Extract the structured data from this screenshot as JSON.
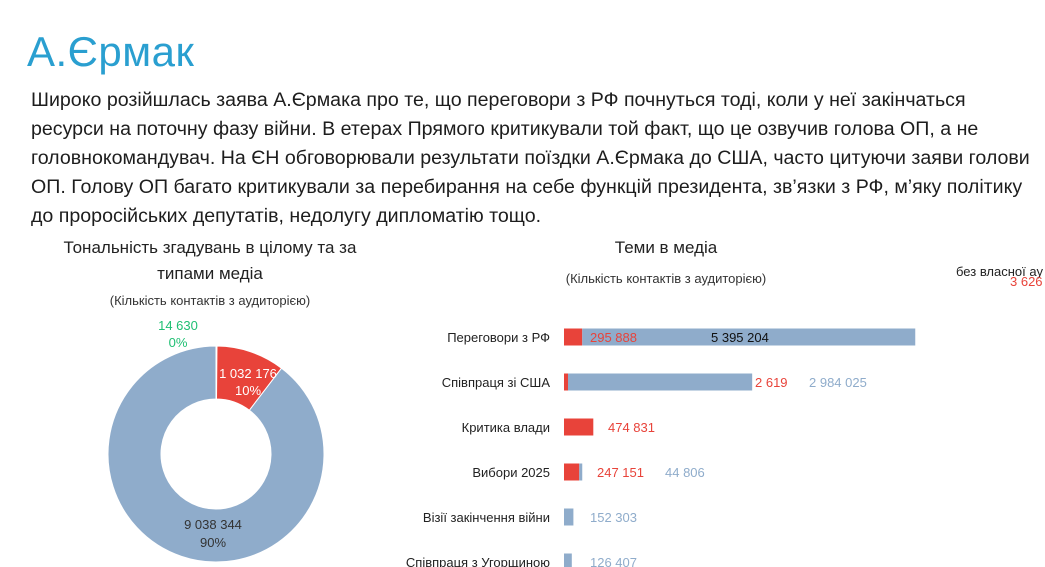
{
  "page": {
    "title": "А.Єрмак",
    "description": "Широко розійшлась заява А.Єрмака про те, що переговори з РФ почнуться тоді, коли у неї закінчаться ресурси на поточну фазу війни. В етерах Прямого критикували той факт, що це озвучив голова ОП, а не головнокомандувач. На ЄН обговорювали результати поїздки А.Єрмака до США, часто цитуючи заяви голови ОП. Голову ОП багато критикували за перебирання на себе функцій президента, зв’язки з РФ, м’яку політику до проросійських депутатів, недолугу дипломатію тощо."
  },
  "colors": {
    "title": "#2a9fd0",
    "positive": "#1fbf73",
    "negative": "#e8433a",
    "neutral": "#8faccb"
  },
  "chart_data": [
    {
      "type": "pie",
      "title_line1": "Тональність згадувань в цілому та за",
      "title_line2": "типами медіа",
      "subtitle": "(Кількість контактів з аудиторією)",
      "slices": [
        {
          "value": 14630,
          "label": "14 630",
          "pct": "0%",
          "color": "#1fbf73"
        },
        {
          "value": 1032176,
          "label": "1 032 176",
          "pct": "10%",
          "color": "#e8433a"
        },
        {
          "value": 9038344,
          "label": "9 038 344",
          "pct": "90%",
          "color": "#8faccb"
        }
      ]
    },
    {
      "type": "bar",
      "title": "Теми в медіа",
      "subtitle": "(Кількість контактів з аудиторією)",
      "categories": [
        "Переговори з РФ",
        "Співпраця зі США",
        "Критика влади",
        "Вибори 2025",
        "Візії закінчення війни",
        "Співпраця з Угорщиною"
      ],
      "series": [
        {
          "values": [
            295888,
            2619,
            474831,
            247151,
            0,
            0
          ],
          "labels": [
            "295 888",
            "2 619",
            "474 831",
            "247 151",
            "",
            ""
          ],
          "color": "#e8433a"
        },
        {
          "values": [
            5395204,
            2984025,
            0,
            44806,
            152303,
            126407
          ],
          "labels": [
            "5 395 204",
            "2 984 025",
            "",
            "44 806",
            "152 303",
            "126 407"
          ],
          "color": "#8faccb"
        }
      ]
    }
  ],
  "partial": {
    "text": "без власної ау",
    "value": "3 626"
  }
}
